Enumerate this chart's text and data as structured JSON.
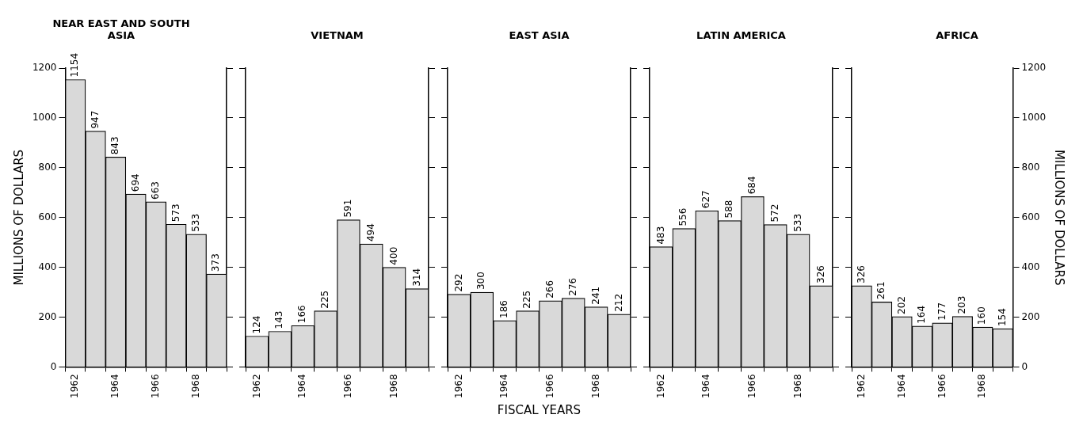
{
  "chart_data": [
    {
      "type": "bar",
      "title": "NEAR EAST AND SOUTH ASIA",
      "ylabel": "MILLIONS OF DOLLARS",
      "categories": [
        "1962",
        null,
        "1964",
        null,
        "1966",
        null,
        "1968",
        null
      ],
      "values": [
        1154,
        947,
        843,
        694,
        663,
        573,
        533,
        373
      ],
      "color": "#d9d9d9",
      "data_labels": true,
      "ylim": [
        0,
        1200
      ],
      "yticks": [
        0,
        200,
        400,
        600,
        800,
        1000,
        1200
      ]
    },
    {
      "type": "bar",
      "title": "VIETNAM",
      "categories": [
        "1962",
        null,
        "1964",
        null,
        "1966",
        null,
        "1968",
        null
      ],
      "values": [
        124,
        143,
        166,
        225,
        591,
        494,
        400,
        314
      ],
      "color": "#d9d9d9",
      "data_labels": true,
      "ylim": [
        0,
        1200
      ],
      "yticks": [
        0,
        200,
        400,
        600,
        800,
        1000,
        1200
      ],
      "tick_labels": "x"
    },
    {
      "type": "bar",
      "title": "EAST ASIA",
      "xlabel": "FISCAL YEARS",
      "categories": [
        "1962",
        null,
        "1964",
        null,
        "1966",
        null,
        "1968",
        null
      ],
      "values": [
        292,
        300,
        186,
        225,
        266,
        276,
        241,
        212
      ],
      "color": "#d9d9d9",
      "data_labels": true,
      "ylim": [
        0,
        1200
      ],
      "yticks": [
        0,
        200,
        400,
        600,
        800,
        1000,
        1200
      ],
      "tick_labels": "x"
    },
    {
      "type": "bar",
      "title": "LATIN AMERICA",
      "categories": [
        "1962",
        null,
        "1964",
        null,
        "1966",
        null,
        "1968",
        null
      ],
      "values": [
        483,
        556,
        627,
        588,
        684,
        572,
        533,
        326
      ],
      "color": "#d9d9d9",
      "data_labels": true,
      "ylim": [
        0,
        1200
      ],
      "yticks": [
        0,
        200,
        400,
        600,
        800,
        1000,
        1200
      ],
      "tick_labels": "x"
    },
    {
      "type": "bar",
      "title": "AFRICA",
      "y2label": "MILLIONS OF DOLLARS",
      "categories": [
        "1962",
        null,
        "1964",
        null,
        "1966",
        null,
        "1968",
        null
      ],
      "series": [
        {
          "values": [
            326,
            261,
            202,
            164,
            177,
            203,
            160,
            154
          ],
          "color": "#d9d9d9",
          "axis": "y2"
        }
      ],
      "data_labels": true,
      "y2lim": [
        0,
        1200
      ],
      "y2ticks": [
        0,
        200,
        400,
        600,
        800,
        1000,
        1200
      ]
    }
  ]
}
